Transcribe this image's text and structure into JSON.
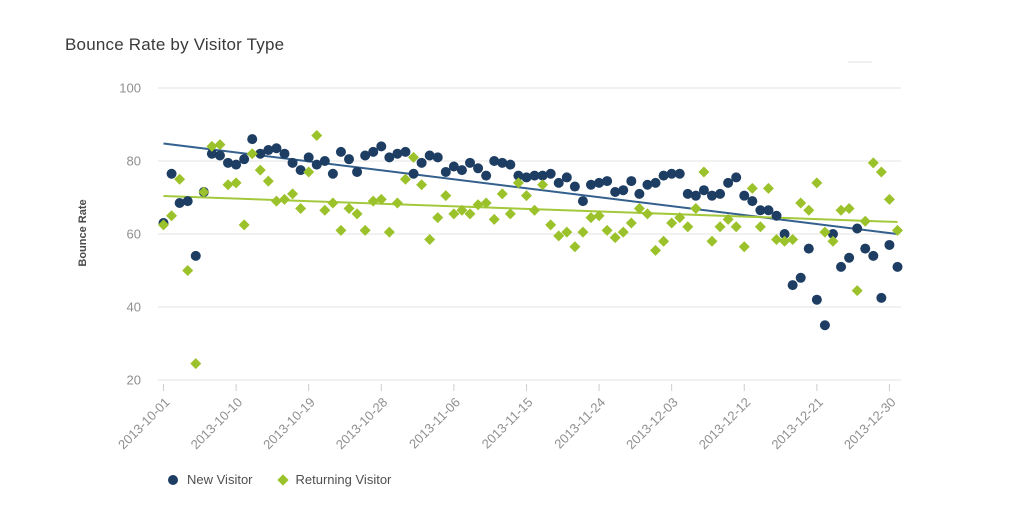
{
  "title": "Bounce Rate by Visitor Type",
  "chart_data": {
    "type": "scatter",
    "title": "Bounce Rate by Visitor Type",
    "xlabel": "",
    "ylabel": "Bounce Rate",
    "x_unit": "day",
    "x_start": "2013-10-01",
    "x_end": "2013-12-31",
    "x_tick_labels": [
      "2013-10-01",
      "2013-10-10",
      "2013-10-19",
      "2013-10-28",
      "2013-11-06",
      "2013-11-15",
      "2013-11-24",
      "2013-12-03",
      "2013-12-12",
      "2013-12-21",
      "2013-12-30"
    ],
    "x_tick_days": [
      0,
      9,
      18,
      27,
      36,
      45,
      54,
      63,
      72,
      81,
      90
    ],
    "y_ticks": [
      100,
      80,
      60,
      40,
      20
    ],
    "ylim": [
      20,
      100
    ],
    "grid": true,
    "legend_position": "bottom",
    "axis_text_color": "#8f8f8f",
    "gridline_color": "#e3e3e3",
    "tick_mark_color": "#cccccc",
    "series": [
      {
        "name": "New Visitor",
        "marker": "circle",
        "color": "#1d3d62",
        "trend_color": "#33608c",
        "trendline": {
          "start_value": 84.8,
          "end_value": 60.0
        },
        "values": [
          63,
          76.5,
          68.5,
          69,
          54,
          71.5,
          82,
          81.5,
          79.5,
          79,
          80.5,
          86,
          82,
          83,
          83.5,
          82,
          79.5,
          77.5,
          81,
          79,
          80,
          76.5,
          82.5,
          80.5,
          77,
          81.5,
          82.5,
          84,
          81,
          82,
          82.5,
          76.5,
          79.5,
          81.5,
          81,
          77,
          78.5,
          77.5,
          79.5,
          78,
          76,
          80,
          79.5,
          79,
          76,
          75.5,
          76,
          76,
          76.5,
          74,
          75.5,
          73,
          69,
          73.5,
          74,
          74.5,
          71.5,
          72,
          74.5,
          71,
          73.5,
          74,
          76,
          76.5,
          76.5,
          71,
          70.5,
          72,
          70.5,
          71,
          74,
          75.5,
          70.5,
          69,
          66.5,
          66.5,
          65,
          60,
          46,
          48,
          56,
          42,
          35,
          60,
          51,
          53.5,
          61.5,
          56,
          54,
          42.5,
          57,
          51
        ]
      },
      {
        "name": "Returning Visitor",
        "marker": "diamond",
        "color": "#9cc22b",
        "trend_color": "#a4c83c",
        "trendline": {
          "start_value": 70.4,
          "end_value": 63.3
        },
        "values": [
          62.5,
          65,
          75,
          50,
          24.5,
          71.5,
          84,
          84.5,
          73.5,
          74,
          62.5,
          82,
          77.5,
          74.5,
          69,
          69.5,
          71,
          67,
          77,
          87,
          66.5,
          68.5,
          61,
          67,
          65.5,
          61,
          69,
          69.5,
          60.5,
          68.5,
          75,
          81,
          73.5,
          58.5,
          64.5,
          70.5,
          65.5,
          66.5,
          65.5,
          68,
          68.5,
          64,
          71,
          65.5,
          74,
          70.5,
          66.5,
          73.5,
          62.5,
          59.5,
          60.5,
          56.5,
          60.5,
          64.5,
          65,
          61,
          59,
          60.5,
          63,
          67,
          65.5,
          55.5,
          58,
          63,
          64.5,
          62,
          67,
          77,
          58,
          62,
          64,
          62,
          56.5,
          72.5,
          62,
          72.5,
          58.5,
          58,
          58.5,
          68.5,
          66.5,
          74,
          60.5,
          58,
          66.5,
          67,
          44.5,
          63.5,
          79.5,
          77,
          69.5,
          61
        ]
      }
    ]
  }
}
